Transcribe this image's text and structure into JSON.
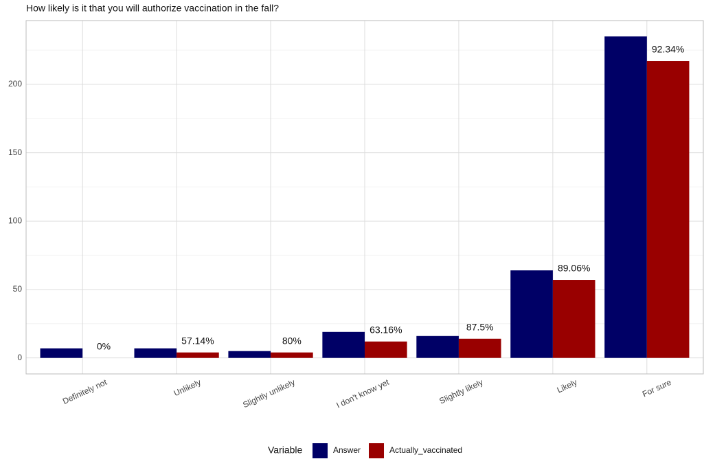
{
  "chart_data": {
    "type": "bar",
    "title": "How likely is it that you will authorize vaccination in the fall?",
    "categories": [
      "Definitely not",
      "Unlikely",
      "Slightly unlikely",
      "I don't know yet",
      "Slightly likely",
      "Likely",
      "For sure"
    ],
    "series": [
      {
        "name": "Answer",
        "color": "#000066",
        "values": [
          7,
          7,
          5,
          19,
          16,
          64,
          235
        ]
      },
      {
        "name": "Actually_vaccinated",
        "color": "#990000",
        "values": [
          0,
          4,
          4,
          12,
          14,
          57,
          217
        ],
        "labels": [
          "0%",
          "57.14%",
          "80%",
          "63.16%",
          "87.5%",
          "89.06%",
          "92.34%"
        ]
      }
    ],
    "legend_title": "Variable",
    "legend": "bottom",
    "ylim": [
      -11.7,
      246.6
    ],
    "yticks": [
      0,
      50,
      100,
      150,
      200
    ],
    "grid": true,
    "minor_grid": true
  }
}
